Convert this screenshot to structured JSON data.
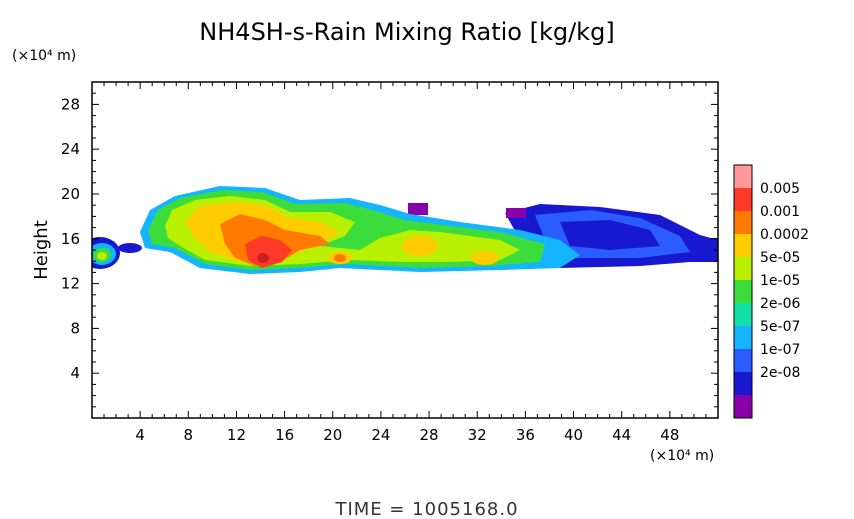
{
  "chart_data": {
    "type": "heatmap",
    "title": "NH4SH-s-Rain Mixing Ratio [kg/kg]",
    "xlabel": "",
    "ylabel": "Height",
    "x_unit": "(×10⁴ m)",
    "y_unit": "(×10⁴ m)",
    "xlim": [
      0,
      52
    ],
    "ylim": [
      0,
      30
    ],
    "x_ticks": [
      4,
      8,
      12,
      16,
      20,
      24,
      28,
      32,
      36,
      40,
      44,
      48
    ],
    "y_ticks": [
      4,
      8,
      12,
      16,
      20,
      24,
      28
    ],
    "colorbar": {
      "labels": [
        "0.005",
        "0.001",
        "0.0002",
        "5e-05",
        "1e-05",
        "2e-06",
        "5e-07",
        "1e-07",
        "2e-08"
      ],
      "colors": [
        "#ff9999",
        "#ff3a28",
        "#ff7a00",
        "#ffcc00",
        "#b8f000",
        "#3cdc3c",
        "#12e0a8",
        "#14b4ff",
        "#2a5cff",
        "#1818d0",
        "#8800aa"
      ]
    },
    "field_regions": [
      {
        "x": [
          0,
          3
        ],
        "y": [
          13.5,
          16
        ],
        "level": "1e-05"
      },
      {
        "x": [
          4,
          24
        ],
        "y": [
          12.8,
          20
        ],
        "level": "5e-05"
      },
      {
        "x": [
          9,
          18
        ],
        "y": [
          13.5,
          18
        ],
        "level": "0.0002"
      },
      {
        "x": [
          12,
          16
        ],
        "y": [
          13.5,
          16
        ],
        "level": "0.001"
      },
      {
        "x": [
          22,
          36
        ],
        "y": [
          13,
          17
        ],
        "level": "5e-05"
      },
      {
        "x": [
          35,
          52
        ],
        "y": [
          13.5,
          19.5
        ],
        "level": "1e-07"
      }
    ]
  },
  "footer": {
    "time_label": "TIME  =  1005168.0"
  }
}
